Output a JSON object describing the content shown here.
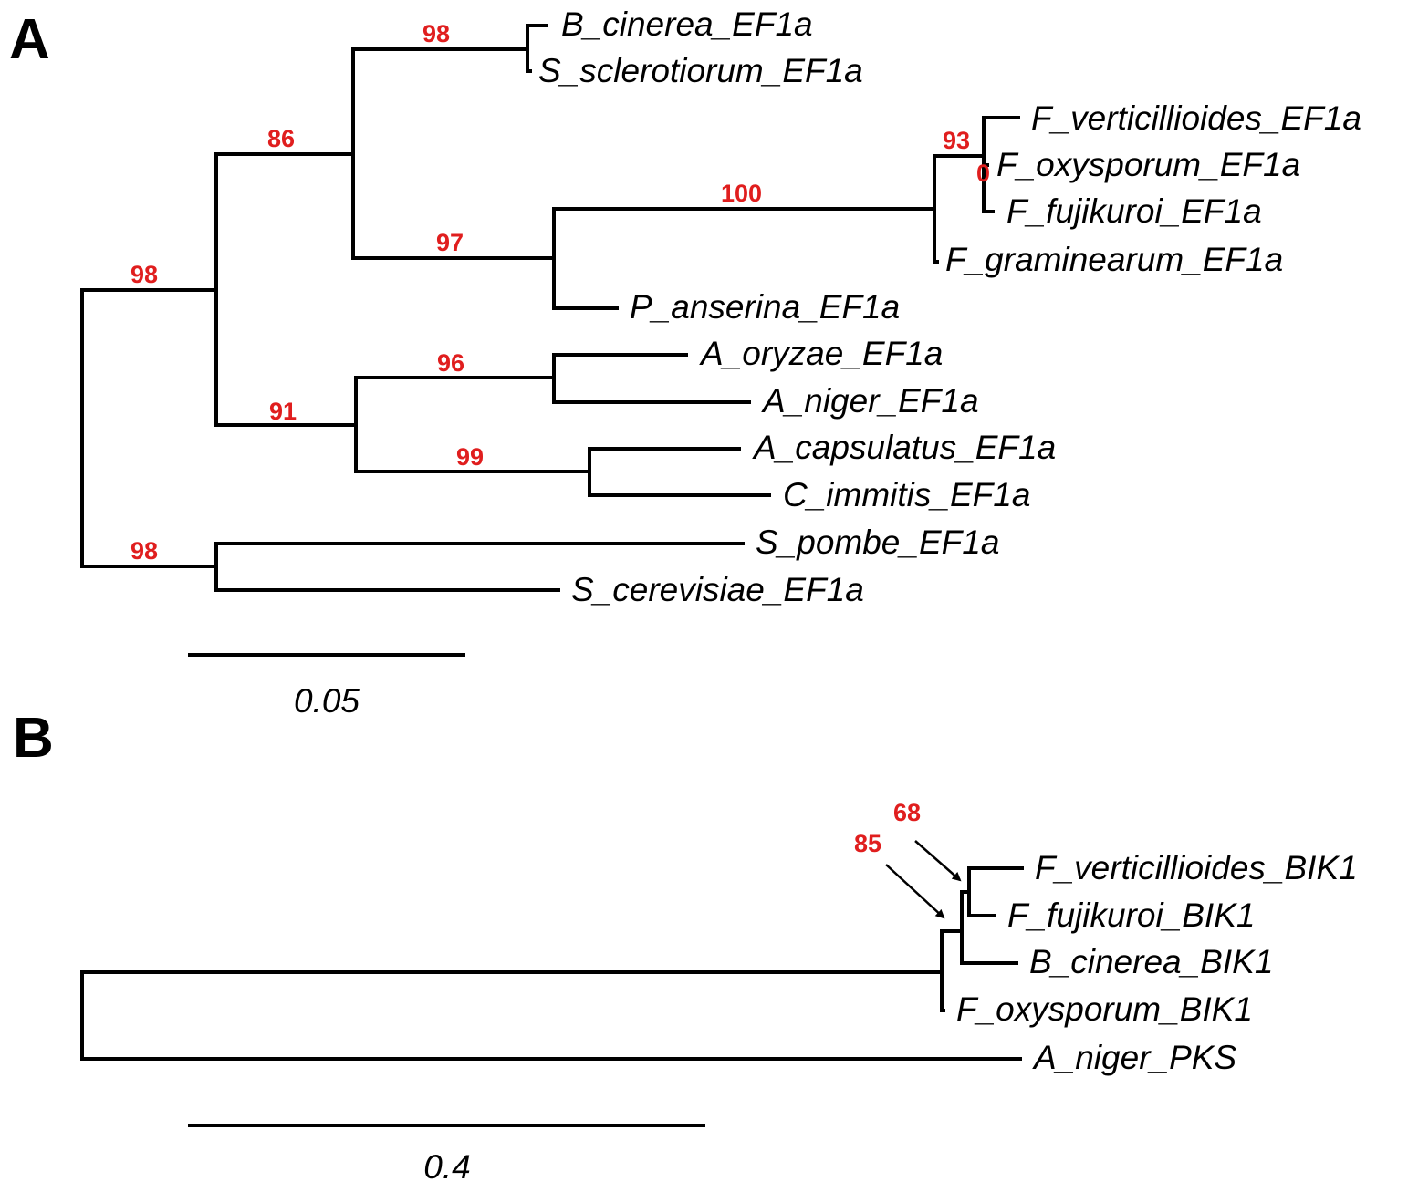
{
  "panel_a": {
    "label": "A",
    "taxa": {
      "b_cinerea": "B_cinerea_EF1a",
      "s_sclerotiorum": "S_sclerotiorum_EF1a",
      "f_verticillioides": "F_verticillioides_EF1a",
      "f_oxysporum": "F_oxysporum_EF1a",
      "f_fujikuroi": "F_fujikuroi_EF1a",
      "f_graminearum": "F_graminearum_EF1a",
      "p_anserina": "P_anserina_EF1a",
      "a_oryzae": "A_oryzae_EF1a",
      "a_niger": "A_niger_EF1a",
      "a_capsulatus": "A_capsulatus_EF1a",
      "c_immitis": "C_immitis_EF1a",
      "s_pombe": "S_pombe_EF1a",
      "s_cerevisiae": "S_cerevisiae_EF1a"
    },
    "support": {
      "root_upper": "98",
      "root_lower": "98",
      "leotiomycetes_sordariomycetes": "86",
      "botrytis_sclerotinia": "98",
      "sordariomycetes": "97",
      "fusarium": "100",
      "fusarium_inner": "93",
      "fusarium_innermost": "0",
      "eurotiomycetes": "91",
      "aspergillus": "96",
      "onygenales": "99"
    },
    "scale_bar": {
      "label": "0.05",
      "value": 0.05
    }
  },
  "panel_b": {
    "label": "B",
    "taxa": {
      "f_verticillioides": "F_verticillioides_BIK1",
      "f_fujikuroi": "F_fujikuroi_BIK1",
      "b_cinerea": "B_cinerea_BIK1",
      "f_oxysporum": "F_oxysporum_BIK1",
      "a_niger": "A_niger_PKS"
    },
    "support": {
      "inner": "68",
      "outer": "85"
    },
    "scale_bar": {
      "label": "0.4",
      "value": 0.4
    }
  }
}
